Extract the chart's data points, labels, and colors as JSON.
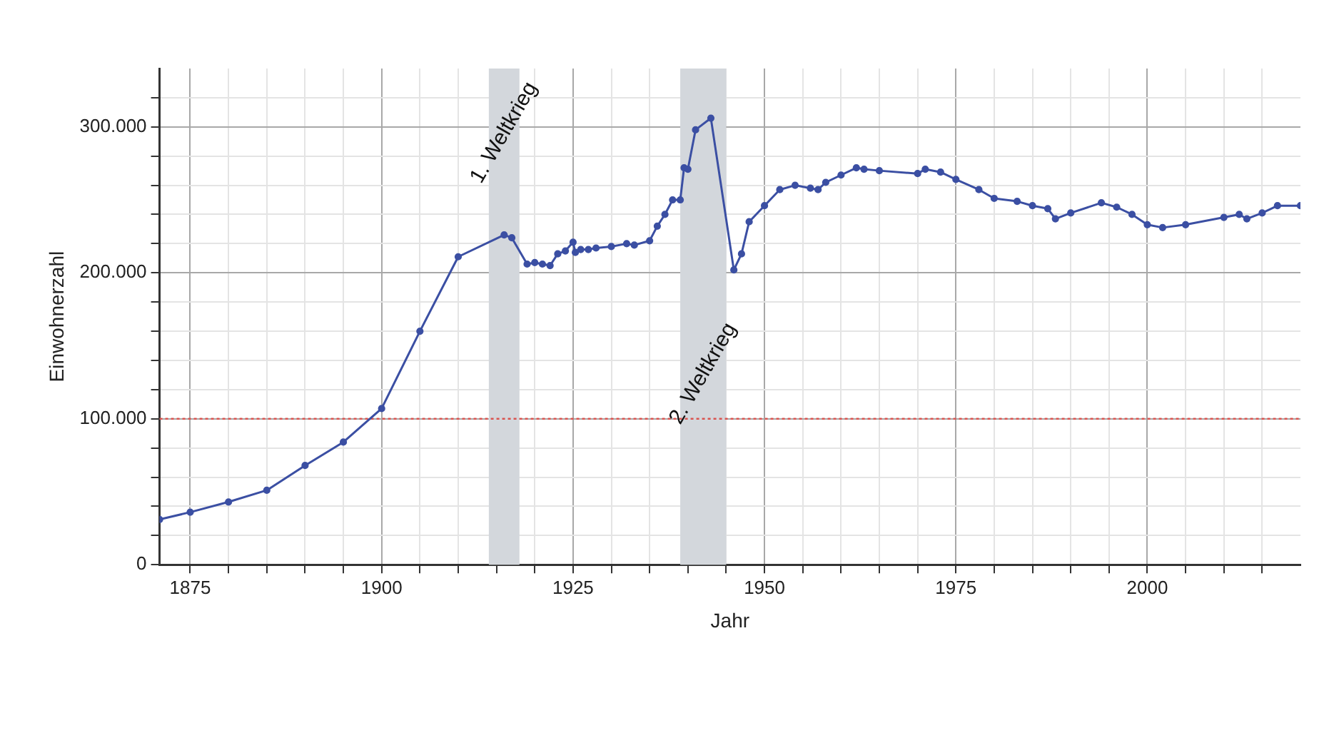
{
  "chart_data": {
    "type": "line",
    "xlabel": "Jahr",
    "ylabel": "Einwohnerzahl",
    "x": [
      1871,
      1875,
      1880,
      1885,
      1890,
      1895,
      1900,
      1905,
      1910,
      1916,
      1917,
      1919,
      1920,
      1921,
      1922,
      1923,
      1924,
      1925,
      1925.3,
      1926,
      1927,
      1928,
      1930,
      1932,
      1933,
      1935,
      1936,
      1937,
      1938,
      1939,
      1939.5,
      1940,
      1941,
      1943,
      1946,
      1947,
      1948,
      1950,
      1952,
      1954,
      1956,
      1957,
      1958,
      1960,
      1962,
      1963,
      1965,
      1970,
      1971,
      1973,
      1975,
      1978,
      1980,
      1983,
      1985,
      1987,
      1988,
      1990,
      1994,
      1996,
      1998,
      2000,
      2002,
      2005,
      2010,
      2012,
      2013,
      2015,
      2017,
      2020
    ],
    "series": [
      {
        "color": "#3b4fa3",
        "values": [
          31000,
          36000,
          43000,
          51000,
          68000,
          84000,
          107000,
          160000,
          211000,
          226000,
          224000,
          206000,
          207000,
          206000,
          205000,
          213000,
          215000,
          221000,
          214000,
          216000,
          216000,
          217000,
          218000,
          220000,
          219000,
          222000,
          232000,
          240000,
          250000,
          250000,
          272000,
          271000,
          298000,
          306000,
          202000,
          213000,
          235000,
          246000,
          257000,
          260000,
          258000,
          257000,
          262000,
          267000,
          272000,
          271000,
          270000,
          268000,
          271000,
          269000,
          264000,
          257000,
          251000,
          249000,
          246000,
          244000,
          237000,
          241000,
          248000,
          245000,
          240000,
          233000,
          231000,
          233000,
          238000,
          240000,
          237000,
          241000,
          246000,
          246000
        ]
      }
    ],
    "xlim": [
      1871,
      2020
    ],
    "xticks": [
      1875,
      {
        "value": 1880,
        "label": null
      },
      {
        "value": 1885,
        "label": null
      },
      {
        "value": 1890,
        "label": null
      },
      {
        "value": 1895,
        "label": null
      },
      1900,
      {
        "value": 1905,
        "label": null
      },
      {
        "value": 1910,
        "label": null
      },
      {
        "value": 1915,
        "label": null
      },
      {
        "value": 1920,
        "label": null
      },
      1925,
      {
        "value": 1930,
        "label": null
      },
      {
        "value": 1935,
        "label": null
      },
      {
        "value": 1940,
        "label": null
      },
      {
        "value": 1945,
        "label": null
      },
      1950,
      {
        "value": 1955,
        "label": null
      },
      {
        "value": 1960,
        "label": null
      },
      {
        "value": 1965,
        "label": null
      },
      {
        "value": 1970,
        "label": null
      },
      1975,
      {
        "value": 1980,
        "label": null
      },
      {
        "value": 1985,
        "label": null
      },
      {
        "value": 1990,
        "label": null
      },
      {
        "value": 1995,
        "label": null
      },
      2000,
      {
        "value": 2005,
        "label": null
      },
      {
        "value": 2010,
        "label": null
      },
      {
        "value": 2015,
        "label": null
      }
    ],
    "ylim": [
      0,
      340000
    ],
    "yticks": [
      0,
      {
        "value": 20000,
        "label": null
      },
      {
        "value": 40000,
        "label": null
      },
      {
        "value": 60000,
        "label": null
      },
      {
        "value": 80000,
        "label": null
      },
      {
        "value": 100000,
        "label": "100.000"
      },
      {
        "value": 120000,
        "label": null
      },
      {
        "value": 140000,
        "label": null
      },
      {
        "value": 160000,
        "label": null
      },
      {
        "value": 180000,
        "label": null
      },
      {
        "value": 200000,
        "label": "200.000"
      },
      {
        "value": 220000,
        "label": null
      },
      {
        "value": 240000,
        "label": null
      },
      {
        "value": 260000,
        "label": null
      },
      {
        "value": 280000,
        "label": null
      },
      {
        "value": 300000,
        "label": "300.000"
      },
      {
        "value": 320000,
        "label": null
      }
    ],
    "grid": true,
    "legend": false,
    "marker": "circle",
    "line_style": "solid",
    "ref_lines": [
      {
        "axis": "y",
        "value": 100000,
        "color": "#d9534f",
        "line_style": "dotted"
      }
    ],
    "bands": [
      {
        "axis": "x",
        "from": 1914,
        "to": 1918,
        "label": "1. Weltkrieg",
        "color": "#d3d7dc"
      },
      {
        "axis": "x",
        "from": 1939,
        "to": 1945,
        "label": "2. Weltkrieg",
        "color": "#d3d7dc"
      }
    ]
  }
}
